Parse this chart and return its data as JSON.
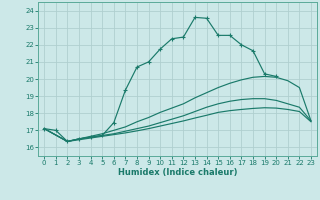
{
  "xlabel": "Humidex (Indice chaleur)",
  "background_color": "#cce8e8",
  "grid_color": "#b0cfcf",
  "line_color": "#1a7a6a",
  "spine_color": "#5aaa99",
  "xlim": [
    -0.5,
    23.5
  ],
  "ylim": [
    15.5,
    24.5
  ],
  "xticks": [
    0,
    1,
    2,
    3,
    4,
    5,
    6,
    7,
    8,
    9,
    10,
    11,
    12,
    13,
    14,
    15,
    16,
    17,
    18,
    19,
    20,
    21,
    22,
    23
  ],
  "yticks": [
    16,
    17,
    18,
    19,
    20,
    21,
    22,
    23,
    24
  ],
  "line1_x": [
    0,
    1,
    2,
    3,
    4,
    5,
    6,
    7,
    8,
    9,
    10,
    11,
    12,
    13,
    14,
    15,
    16,
    17,
    18,
    19,
    20
  ],
  "line1_y": [
    17.1,
    17.0,
    16.35,
    16.5,
    16.6,
    16.7,
    17.45,
    19.35,
    20.7,
    21.0,
    21.75,
    22.35,
    22.45,
    23.6,
    23.55,
    22.55,
    22.55,
    22.0,
    21.65,
    20.3,
    20.15
  ],
  "line2_x": [
    0,
    2,
    3,
    4,
    5,
    6,
    7,
    8,
    9,
    10,
    11,
    12,
    13,
    14,
    15,
    16,
    17,
    18,
    19,
    20,
    21,
    22,
    23
  ],
  "line2_y": [
    17.1,
    16.35,
    16.5,
    16.65,
    16.8,
    17.0,
    17.2,
    17.5,
    17.75,
    18.05,
    18.3,
    18.55,
    18.9,
    19.2,
    19.5,
    19.75,
    19.95,
    20.1,
    20.15,
    20.1,
    19.9,
    19.5,
    17.55
  ],
  "line3_x": [
    0,
    2,
    3,
    4,
    5,
    6,
    7,
    8,
    9,
    10,
    11,
    12,
    13,
    14,
    15,
    16,
    17,
    18,
    19,
    20,
    21,
    22,
    23
  ],
  "line3_y": [
    17.1,
    16.35,
    16.5,
    16.6,
    16.7,
    16.8,
    16.95,
    17.1,
    17.25,
    17.45,
    17.65,
    17.85,
    18.1,
    18.35,
    18.55,
    18.7,
    18.8,
    18.85,
    18.85,
    18.75,
    18.55,
    18.35,
    17.55
  ],
  "line4_x": [
    0,
    2,
    3,
    4,
    5,
    6,
    7,
    8,
    9,
    10,
    11,
    12,
    13,
    14,
    15,
    16,
    17,
    18,
    19,
    20,
    21,
    22,
    23
  ],
  "line4_y": [
    17.1,
    16.35,
    16.45,
    16.55,
    16.65,
    16.75,
    16.85,
    16.97,
    17.1,
    17.25,
    17.4,
    17.55,
    17.72,
    17.88,
    18.05,
    18.15,
    18.22,
    18.28,
    18.32,
    18.3,
    18.22,
    18.1,
    17.5
  ]
}
